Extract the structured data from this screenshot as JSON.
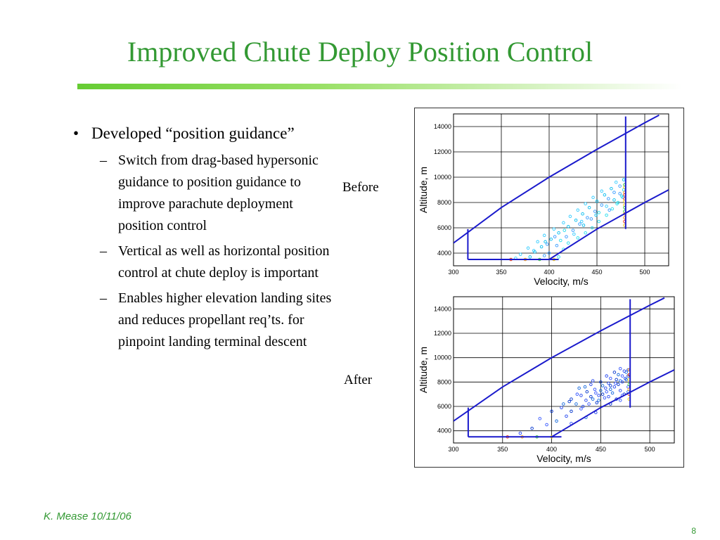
{
  "slide": {
    "title": "Improved Chute Deploy Position Control",
    "bullet": {
      "mark": "•",
      "text": "Developed “position guidance”"
    },
    "sub_mark": "–",
    "sub_bullets": [
      "Switch from drag-based hypersonic guidance to position guidance to improve parachute deployment position control",
      "Vertical as well as horizontal position control at chute deploy is important",
      "Enables higher elevation landing sites and reduces propellant req’ts. for pinpoint landing terminal descent"
    ],
    "label_before": "Before",
    "label_after": "After",
    "footer": "K. Mease  10/11/06",
    "page_number": "8"
  },
  "colors": {
    "title": "#339933",
    "boundary": "#1a1acc",
    "points_light": [
      "#33ccff",
      "#00bbee",
      "#3399ff",
      "#22ddee"
    ],
    "points_dark": [
      "#2244ee",
      "#0033cc",
      "#3355ff",
      "#1166dd"
    ],
    "points_edge": [
      "#ff3300",
      "#ff9900",
      "#33cc33",
      "#ffcc00"
    ]
  },
  "chart_data": [
    {
      "type": "scatter",
      "title": "",
      "label": "Before",
      "xlabel": "Velocity, m/s",
      "ylabel": "Altitude, m",
      "xlim": [
        300,
        525
      ],
      "ylim": [
        3000,
        15000
      ],
      "xticks": [
        300,
        350,
        400,
        450,
        500
      ],
      "yticks": [
        4000,
        6000,
        8000,
        10000,
        12000,
        14000
      ],
      "grid": true,
      "boundary": {
        "upper_curve": [
          [
            300,
            4800
          ],
          [
            350,
            7600
          ],
          [
            400,
            10000
          ],
          [
            450,
            12200
          ],
          [
            500,
            14300
          ],
          [
            515,
            14900
          ]
        ],
        "lower_curve": [
          [
            400,
            3500
          ],
          [
            450,
            5900
          ],
          [
            500,
            8000
          ],
          [
            525,
            9000
          ]
        ],
        "left_vertical": [
          [
            315,
            3500
          ],
          [
            315,
            5900
          ]
        ],
        "right_vertical": [
          [
            480,
            5900
          ],
          [
            480,
            14800
          ]
        ],
        "bottom": [
          [
            315,
            3500
          ],
          [
            410,
            3500
          ]
        ]
      },
      "points": [
        [
          360,
          3500
        ],
        [
          375,
          3500
        ],
        [
          390,
          3500
        ],
        [
          405,
          3500
        ],
        [
          365,
          3600
        ],
        [
          380,
          3700
        ],
        [
          395,
          3800
        ],
        [
          410,
          3700
        ],
        [
          370,
          3900
        ],
        [
          385,
          4100
        ],
        [
          400,
          4000
        ],
        [
          415,
          4300
        ],
        [
          378,
          4400
        ],
        [
          392,
          4500
        ],
        [
          408,
          4600
        ],
        [
          420,
          4800
        ],
        [
          388,
          4900
        ],
        [
          402,
          5100
        ],
        [
          418,
          5300
        ],
        [
          430,
          5200
        ],
        [
          395,
          5400
        ],
        [
          410,
          5600
        ],
        [
          425,
          5800
        ],
        [
          438,
          5600
        ],
        [
          405,
          5900
        ],
        [
          420,
          6100
        ],
        [
          432,
          6300
        ],
        [
          445,
          6000
        ],
        [
          415,
          6400
        ],
        [
          428,
          6600
        ],
        [
          440,
          6800
        ],
        [
          452,
          6500
        ],
        [
          422,
          6900
        ],
        [
          435,
          7100
        ],
        [
          448,
          7300
        ],
        [
          460,
          7000
        ],
        [
          430,
          7400
        ],
        [
          442,
          7600
        ],
        [
          455,
          7800
        ],
        [
          466,
          7500
        ],
        [
          438,
          7900
        ],
        [
          450,
          8100
        ],
        [
          462,
          8300
        ],
        [
          472,
          8000
        ],
        [
          446,
          8400
        ],
        [
          458,
          8600
        ],
        [
          468,
          8800
        ],
        [
          476,
          8500
        ],
        [
          455,
          8900
        ],
        [
          465,
          9100
        ],
        [
          474,
          9300
        ],
        [
          478,
          9000
        ],
        [
          470,
          9600
        ],
        [
          478,
          9800
        ],
        [
          398,
          4700
        ],
        [
          412,
          5000
        ],
        [
          426,
          5500
        ],
        [
          436,
          6200
        ],
        [
          444,
          6700
        ],
        [
          452,
          7200
        ],
        [
          460,
          7700
        ],
        [
          468,
          8200
        ],
        [
          474,
          8700
        ],
        [
          479,
          9200
        ],
        [
          384,
          4200
        ],
        [
          396,
          4900
        ],
        [
          406,
          5300
        ],
        [
          416,
          5800
        ],
        [
          434,
          6500
        ],
        [
          449,
          7000
        ],
        [
          463,
          7400
        ],
        [
          471,
          7900
        ],
        [
          477,
          8400
        ],
        [
          479,
          6800
        ],
        [
          479,
          7300
        ],
        [
          479,
          7800
        ],
        [
          479,
          8300
        ],
        [
          479,
          8800
        ],
        [
          479,
          9400
        ],
        [
          479,
          6200
        ],
        [
          479,
          6500
        ],
        [
          479,
          7100
        ],
        [
          479,
          7600
        ],
        [
          479,
          8100
        ],
        [
          479,
          8600
        ]
      ]
    },
    {
      "type": "scatter",
      "title": "",
      "label": "After",
      "xlabel": "Velocity, m/s",
      "ylabel": "Altitude, m",
      "xlim": [
        300,
        525
      ],
      "ylim": [
        3000,
        15000
      ],
      "xticks": [
        300,
        350,
        400,
        450,
        500
      ],
      "yticks": [
        4000,
        6000,
        8000,
        10000,
        12000,
        14000
      ],
      "grid": true,
      "boundary": {
        "upper_curve": [
          [
            300,
            4800
          ],
          [
            350,
            7600
          ],
          [
            400,
            10000
          ],
          [
            450,
            12200
          ],
          [
            500,
            14300
          ],
          [
            515,
            14900
          ]
        ],
        "lower_curve": [
          [
            400,
            3500
          ],
          [
            450,
            5900
          ],
          [
            500,
            8000
          ],
          [
            525,
            9000
          ]
        ],
        "left_vertical": [
          [
            315,
            3500
          ],
          [
            315,
            5900
          ]
        ],
        "right_vertical": [
          [
            480,
            5900
          ],
          [
            480,
            14800
          ]
        ],
        "bottom": [
          [
            315,
            3500
          ],
          [
            410,
            3500
          ]
        ]
      },
      "points": [
        [
          355,
          3500
        ],
        [
          370,
          3500
        ],
        [
          385,
          3500
        ],
        [
          400,
          3500
        ],
        [
          368,
          3800
        ],
        [
          380,
          4200
        ],
        [
          395,
          4500
        ],
        [
          405,
          4800
        ],
        [
          415,
          5200
        ],
        [
          420,
          5600
        ],
        [
          430,
          5800
        ],
        [
          425,
          6200
        ],
        [
          435,
          6500
        ],
        [
          440,
          6800
        ],
        [
          445,
          7100
        ],
        [
          450,
          7300
        ],
        [
          455,
          7500
        ],
        [
          460,
          7700
        ],
        [
          465,
          7900
        ],
        [
          470,
          8100
        ],
        [
          475,
          8300
        ],
        [
          478,
          8500
        ],
        [
          438,
          6200
        ],
        [
          442,
          6600
        ],
        [
          448,
          6900
        ],
        [
          452,
          7000
        ],
        [
          456,
          7200
        ],
        [
          460,
          7400
        ],
        [
          464,
          7600
        ],
        [
          468,
          7800
        ],
        [
          472,
          8000
        ],
        [
          476,
          8200
        ],
        [
          430,
          6900
        ],
        [
          436,
          7200
        ],
        [
          444,
          7400
        ],
        [
          452,
          7700
        ],
        [
          458,
          7900
        ],
        [
          466,
          8200
        ],
        [
          472,
          8500
        ],
        [
          476,
          8800
        ],
        [
          478,
          9000
        ],
        [
          446,
          6300
        ],
        [
          454,
          6700
        ],
        [
          462,
          7100
        ],
        [
          470,
          7300
        ],
        [
          474,
          7000
        ],
        [
          478,
          7600
        ],
        [
          428,
          7500
        ],
        [
          440,
          7800
        ],
        [
          450,
          8000
        ],
        [
          460,
          8300
        ],
        [
          468,
          8600
        ],
        [
          474,
          8900
        ],
        [
          420,
          6600
        ],
        [
          432,
          6000
        ],
        [
          448,
          6500
        ],
        [
          458,
          6800
        ],
        [
          466,
          6600
        ],
        [
          472,
          6900
        ],
        [
          478,
          7200
        ],
        [
          410,
          5900
        ],
        [
          418,
          6400
        ],
        [
          426,
          7000
        ],
        [
          434,
          7600
        ],
        [
          442,
          8100
        ],
        [
          400,
          5600
        ],
        [
          388,
          5000
        ],
        [
          412,
          6200
        ],
        [
          456,
          8500
        ],
        [
          464,
          8800
        ],
        [
          470,
          9100
        ],
        [
          479,
          6600
        ],
        [
          479,
          7000
        ],
        [
          479,
          7400
        ],
        [
          479,
          7800
        ],
        [
          479,
          8200
        ],
        [
          479,
          8600
        ],
        [
          479,
          9000
        ],
        [
          420,
          4600
        ],
        [
          435,
          5100
        ],
        [
          445,
          5500
        ],
        [
          460,
          6200
        ],
        [
          470,
          6500
        ]
      ]
    }
  ]
}
